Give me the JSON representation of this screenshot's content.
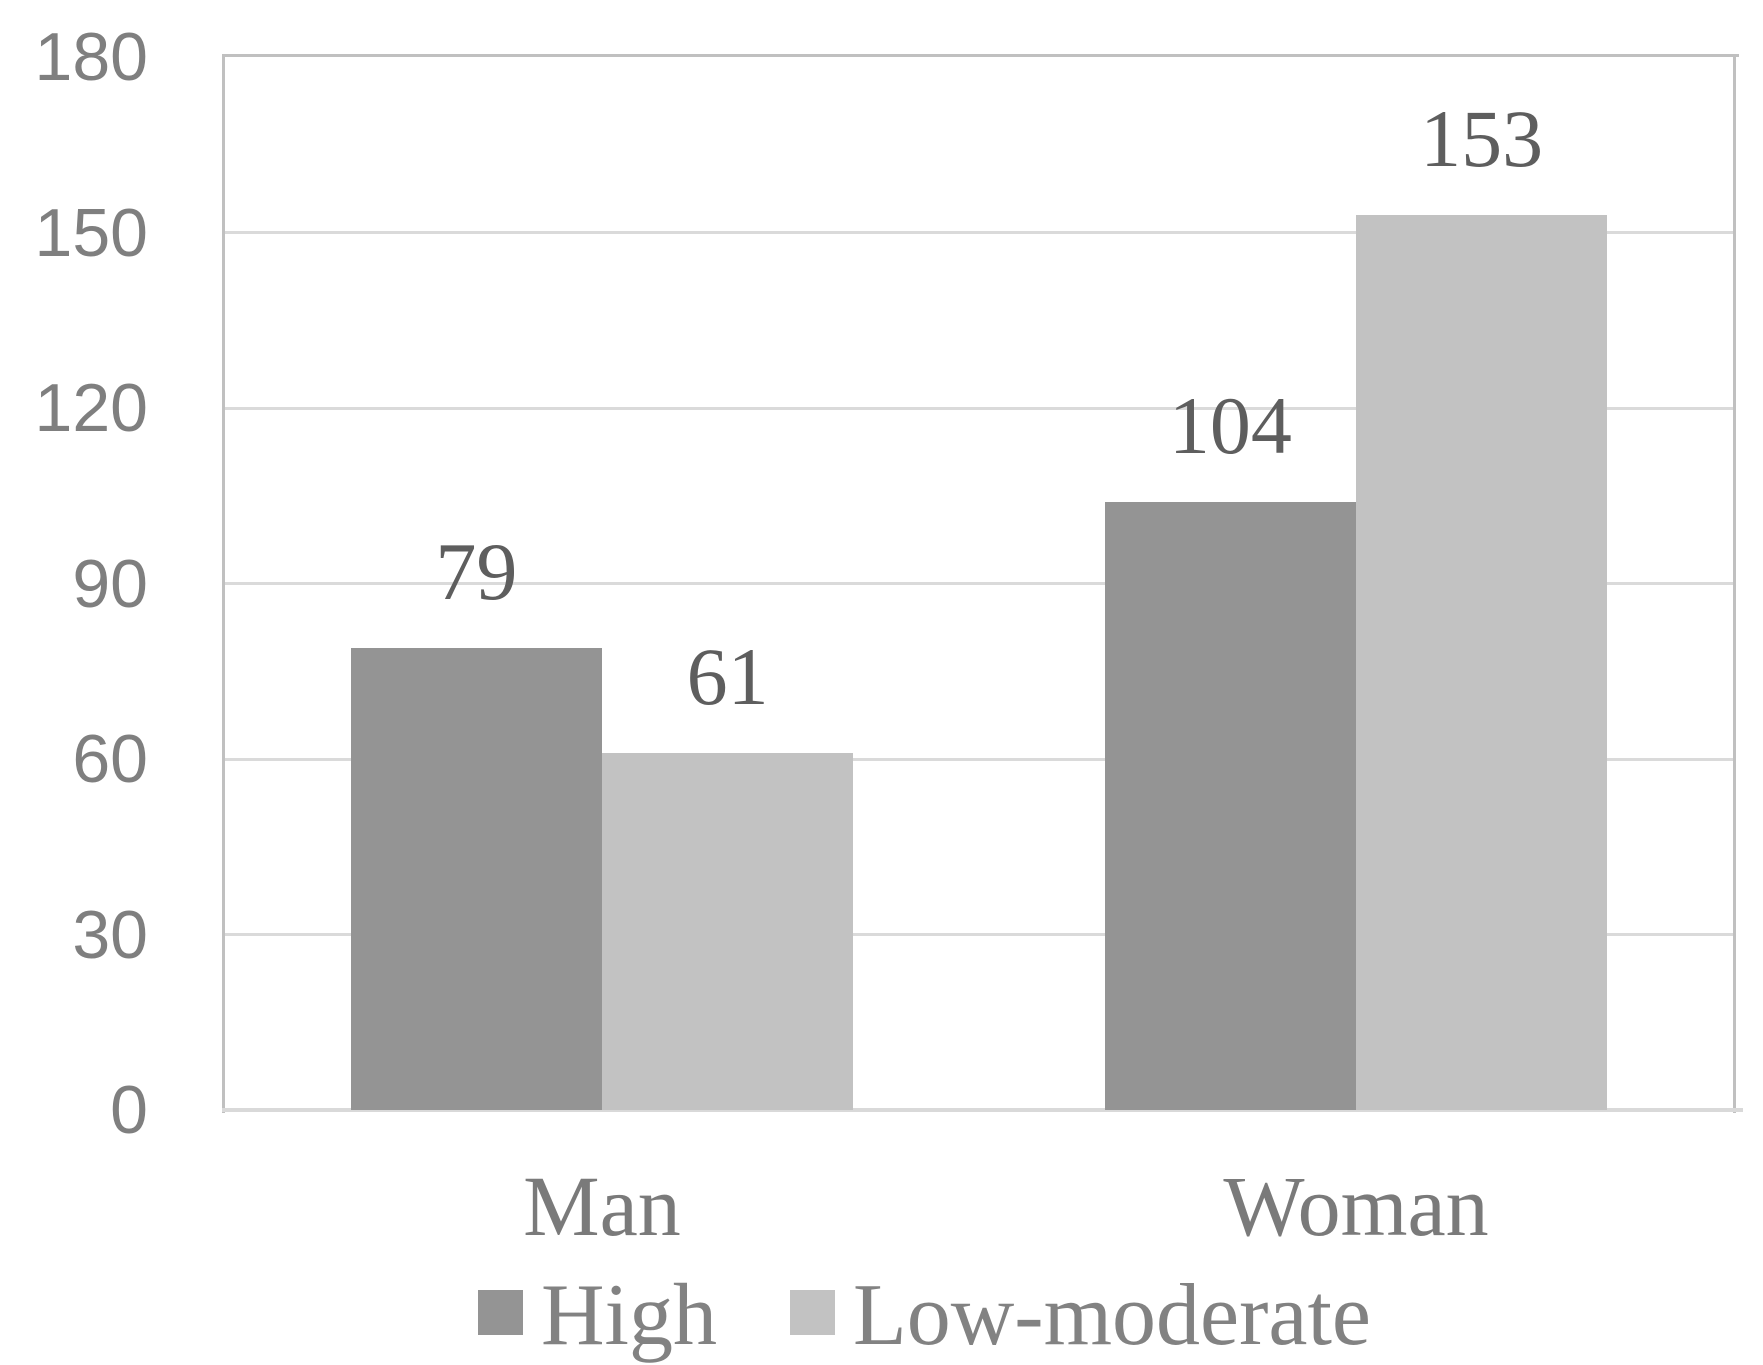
{
  "chart_data": {
    "type": "bar",
    "categories": [
      "Man",
      "Woman"
    ],
    "series": [
      {
        "name": "High",
        "values": [
          79,
          104
        ],
        "color": "#949494"
      },
      {
        "name": "Low-moderate",
        "values": [
          61,
          153
        ],
        "color": "#c2c2c2"
      }
    ],
    "title": "",
    "xlabel": "",
    "ylabel": "",
    "ylim": [
      0,
      180
    ],
    "ytick_interval": 30,
    "yticks": [
      0,
      30,
      60,
      90,
      120,
      150,
      180
    ],
    "data_labels": [
      {
        "category": "Man",
        "series": "High",
        "text": "79"
      },
      {
        "category": "Man",
        "series": "Low-moderate",
        "text": "61"
      },
      {
        "category": "Woman",
        "series": "High",
        "text": "104"
      },
      {
        "category": "Woman",
        "series": "Low-moderate",
        "text": "153"
      }
    ],
    "grid": true,
    "legend_position": "bottom"
  },
  "colors": {
    "background": "#ffffff",
    "bar_high": "#949494",
    "bar_low_moderate": "#c2c2c2",
    "gridline": "#dadada",
    "plot_border": "#c0c0c0",
    "axis_line": "#d9d9d9",
    "ytick_label": "#7f7f7f",
    "category_label": "#7a7a7a",
    "data_label": "#5e5e5e",
    "legend_label": "#828282"
  }
}
